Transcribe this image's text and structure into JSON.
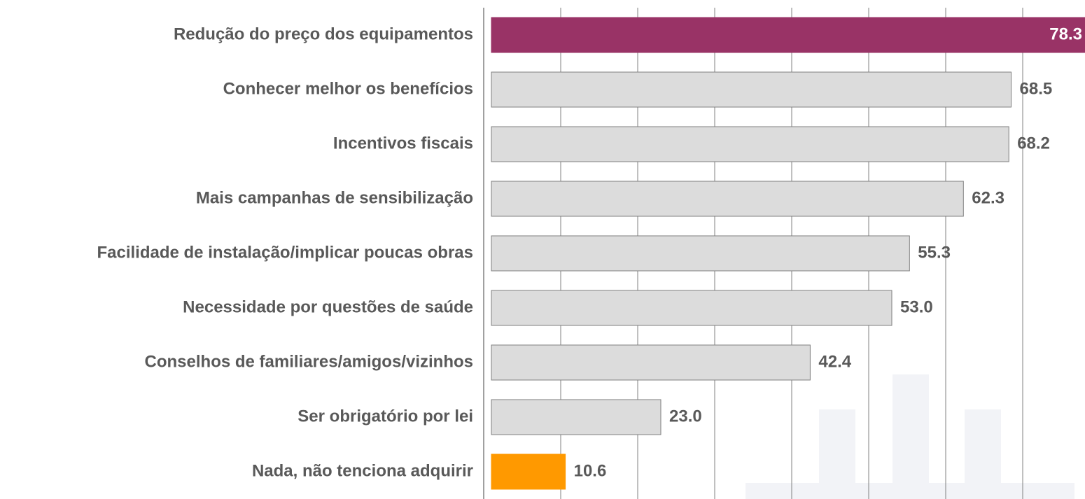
{
  "chart_data": {
    "type": "bar",
    "orientation": "horizontal",
    "categories": [
      "Redução do preço dos equipamentos",
      "Conhecer melhor os benefícios",
      "Incentivos fiscais",
      "Mais campanhas de sensibilização",
      "Facilidade de instalação/implicar poucas obras",
      "Necessidade por questões de saúde",
      "Conselhos de familiares/amigos/vizinhos",
      "Ser obrigatório por lei",
      "Nada, não tenciona adquirir"
    ],
    "values": [
      78.3,
      68.5,
      68.2,
      62.3,
      55.3,
      53.0,
      42.4,
      23.0,
      10.6
    ],
    "value_labels": [
      "78.3",
      "68.5",
      "68.2",
      "62.3",
      "55.3",
      "53.0",
      "42.4",
      "23.0",
      "10.6"
    ],
    "colors": [
      "#993366",
      "#dcdcdc",
      "#dcdcdc",
      "#dcdcdc",
      "#dcdcdc",
      "#dcdcdc",
      "#dcdcdc",
      "#dcdcdc",
      "#ff9900"
    ],
    "xlim": [
      0,
      80
    ],
    "xticks": [
      0,
      10,
      20,
      30,
      40,
      50,
      60,
      70,
      80
    ],
    "grid": true
  }
}
